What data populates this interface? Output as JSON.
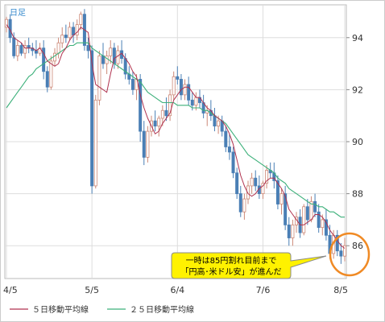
{
  "chart_data": {
    "type": "candlestick",
    "period_label": "日足",
    "x_tick_labels": [
      "4/5",
      "5/5",
      "6/4",
      "7/6",
      "8/5"
    ],
    "y_ticks": [
      86,
      88,
      90,
      92,
      94
    ],
    "ylim": [
      84.8,
      95.2
    ],
    "grid": true,
    "colors": {
      "up": "#cc8877",
      "down": "#4a7fb5",
      "ma5": "#b0324f",
      "ma25": "#3cb07a"
    },
    "series": [
      {
        "name": "５日移動平均線",
        "color": "#b0324f"
      },
      {
        "name": "２５日移動平均線",
        "color": "#3cb07a"
      }
    ],
    "candles_ohlc": [
      [
        94.4,
        94.8,
        94.2,
        94.7
      ],
      [
        94.7,
        94.9,
        93.8,
        94.0
      ],
      [
        94.0,
        94.2,
        93.2,
        93.3
      ],
      [
        93.3,
        93.9,
        93.1,
        93.7
      ],
      [
        93.7,
        93.8,
        93.3,
        93.4
      ],
      [
        93.4,
        93.9,
        93.2,
        93.7
      ],
      [
        93.7,
        94.0,
        93.4,
        93.6
      ],
      [
        93.6,
        93.8,
        93.3,
        93.5
      ],
      [
        93.5,
        93.9,
        93.2,
        93.4
      ],
      [
        93.4,
        93.8,
        93.3,
        93.6
      ],
      [
        93.6,
        93.9,
        92.4,
        92.7
      ],
      [
        92.7,
        92.9,
        91.9,
        92.1
      ],
      [
        92.1,
        93.3,
        92.0,
        93.1
      ],
      [
        93.1,
        93.6,
        92.9,
        93.4
      ],
      [
        93.4,
        94.0,
        93.2,
        93.8
      ],
      [
        93.8,
        94.4,
        93.6,
        94.1
      ],
      [
        94.1,
        94.5,
        93.8,
        94.0
      ],
      [
        94.0,
        94.6,
        93.9,
        94.4
      ],
      [
        94.4,
        94.6,
        93.8,
        94.1
      ],
      [
        94.1,
        94.7,
        93.9,
        94.5
      ],
      [
        94.5,
        95.0,
        94.3,
        94.9
      ],
      [
        94.9,
        95.1,
        93.5,
        93.7
      ],
      [
        93.7,
        94.0,
        93.2,
        93.5
      ],
      [
        93.5,
        93.7,
        88.0,
        88.3
      ],
      [
        88.3,
        91.8,
        88.2,
        91.6
      ],
      [
        91.6,
        93.5,
        91.4,
        93.3
      ],
      [
        93.3,
        93.8,
        92.8,
        93.0
      ],
      [
        93.0,
        93.5,
        92.6,
        93.3
      ],
      [
        93.3,
        93.9,
        93.0,
        93.6
      ],
      [
        93.6,
        93.8,
        92.8,
        93.0
      ],
      [
        93.0,
        93.7,
        92.8,
        93.5
      ],
      [
        93.5,
        93.9,
        93.0,
        93.2
      ],
      [
        93.2,
        93.4,
        92.4,
        92.6
      ],
      [
        92.6,
        92.9,
        92.2,
        92.4
      ],
      [
        92.4,
        92.7,
        91.8,
        92.0
      ],
      [
        92.0,
        92.6,
        91.6,
        92.4
      ],
      [
        92.4,
        92.6,
        90.0,
        90.4
      ],
      [
        90.4,
        90.8,
        89.1,
        89.4
      ],
      [
        89.4,
        90.6,
        89.2,
        90.4
      ],
      [
        90.4,
        91.0,
        90.2,
        90.8
      ],
      [
        90.8,
        91.2,
        90.4,
        90.6
      ],
      [
        90.6,
        91.0,
        90.2,
        90.9
      ],
      [
        90.9,
        91.4,
        90.6,
        91.2
      ],
      [
        91.2,
        91.7,
        90.8,
        91.0
      ],
      [
        91.0,
        92.0,
        90.8,
        91.8
      ],
      [
        91.8,
        92.7,
        91.6,
        92.5
      ],
      [
        92.5,
        92.9,
        92.2,
        92.4
      ],
      [
        92.4,
        92.6,
        91.6,
        91.8
      ],
      [
        91.8,
        92.4,
        91.6,
        92.2
      ],
      [
        92.2,
        92.5,
        91.4,
        91.6
      ],
      [
        91.6,
        91.9,
        91.2,
        91.4
      ],
      [
        91.4,
        91.9,
        91.2,
        91.7
      ],
      [
        91.7,
        92.0,
        91.3,
        91.5
      ],
      [
        91.5,
        91.8,
        90.9,
        91.1
      ],
      [
        91.1,
        91.4,
        90.6,
        91.2
      ],
      [
        91.2,
        91.6,
        90.8,
        91.0
      ],
      [
        91.0,
        91.3,
        90.4,
        90.6
      ],
      [
        90.6,
        91.0,
        90.3,
        90.8
      ],
      [
        90.8,
        91.0,
        90.2,
        90.4
      ],
      [
        90.4,
        90.6,
        89.6,
        89.8
      ],
      [
        89.8,
        90.3,
        89.3,
        89.6
      ],
      [
        89.6,
        89.8,
        88.6,
        88.8
      ],
      [
        88.8,
        89.0,
        87.8,
        88.0
      ],
      [
        88.0,
        88.3,
        87.1,
        87.3
      ],
      [
        87.3,
        88.0,
        87.0,
        87.8
      ],
      [
        87.8,
        88.5,
        87.6,
        88.3
      ],
      [
        88.3,
        88.8,
        88.0,
        88.6
      ],
      [
        88.6,
        88.9,
        88.1,
        88.3
      ],
      [
        88.3,
        88.7,
        87.8,
        88.0
      ],
      [
        88.0,
        88.5,
        87.8,
        88.4
      ],
      [
        88.4,
        89.1,
        88.2,
        88.9
      ],
      [
        88.9,
        89.2,
        88.6,
        88.8
      ],
      [
        88.8,
        89.2,
        88.2,
        88.5
      ],
      [
        88.5,
        88.7,
        87.4,
        87.6
      ],
      [
        87.6,
        88.2,
        87.2,
        88.0
      ],
      [
        88.0,
        88.3,
        86.6,
        86.8
      ],
      [
        86.8,
        87.1,
        86.0,
        86.3
      ],
      [
        86.3,
        87.0,
        86.0,
        86.8
      ],
      [
        86.8,
        87.3,
        86.5,
        87.1
      ],
      [
        87.1,
        87.4,
        86.3,
        86.5
      ],
      [
        86.5,
        87.6,
        86.4,
        87.5
      ],
      [
        87.5,
        87.8,
        86.8,
        87.0
      ],
      [
        87.0,
        87.9,
        86.9,
        87.7
      ],
      [
        87.7,
        88.0,
        87.1,
        87.3
      ],
      [
        87.3,
        87.6,
        86.5,
        86.7
      ],
      [
        86.7,
        87.2,
        86.4,
        87.0
      ],
      [
        87.0,
        87.4,
        86.2,
        86.4
      ],
      [
        86.4,
        86.8,
        85.5,
        85.7
      ],
      [
        85.7,
        86.6,
        85.5,
        86.4
      ],
      [
        86.4,
        86.6,
        85.6,
        85.8
      ],
      [
        85.8,
        86.1,
        85.3,
        85.6
      ],
      [
        85.6,
        86.3,
        85.4,
        86.0
      ]
    ],
    "ma5": [
      94.5,
      94.3,
      94.0,
      93.9,
      93.8,
      93.6,
      93.6,
      93.6,
      93.5,
      93.6,
      93.4,
      93.1,
      93.0,
      92.9,
      93.0,
      93.4,
      93.6,
      93.9,
      94.1,
      94.2,
      94.4,
      94.3,
      94.2,
      93.0,
      92.2,
      92.1,
      92.0,
      91.9,
      92.6,
      93.2,
      93.3,
      93.4,
      93.2,
      93.0,
      92.7,
      92.5,
      91.8,
      91.3,
      90.9,
      90.6,
      90.3,
      90.4,
      90.7,
      90.9,
      91.1,
      91.6,
      91.8,
      92.0,
      92.1,
      92.1,
      91.9,
      91.7,
      91.7,
      91.5,
      91.3,
      91.2,
      91.0,
      90.9,
      90.8,
      90.6,
      90.3,
      89.9,
      89.3,
      88.7,
      88.3,
      88.0,
      87.9,
      88.0,
      88.2,
      88.3,
      88.5,
      88.6,
      88.6,
      88.4,
      88.2,
      87.9,
      87.4,
      87.2,
      87.0,
      86.8,
      86.8,
      86.9,
      87.0,
      87.2,
      87.2,
      87.1,
      86.9,
      86.6,
      86.4,
      86.2,
      86.0,
      85.9
    ],
    "ma25": [
      91.3,
      91.5,
      91.7,
      91.9,
      92.1,
      92.3,
      92.5,
      92.6,
      92.8,
      92.9,
      93.0,
      93.1,
      93.2,
      93.3,
      93.4,
      93.5,
      93.6,
      93.7,
      93.7,
      93.8,
      93.8,
      93.8,
      93.8,
      93.6,
      93.5,
      93.4,
      93.3,
      93.2,
      93.1,
      93.0,
      92.9,
      92.8,
      92.7,
      92.6,
      92.5,
      92.4,
      92.3,
      92.1,
      91.9,
      91.8,
      91.7,
      91.6,
      91.5,
      91.5,
      91.5,
      91.5,
      91.4,
      91.4,
      91.4,
      91.4,
      91.3,
      91.3,
      91.3,
      91.2,
      91.2,
      91.1,
      91.0,
      90.9,
      90.8,
      90.7,
      90.5,
      90.3,
      90.1,
      89.9,
      89.7,
      89.5,
      89.4,
      89.3,
      89.2,
      89.1,
      89.0,
      88.9,
      88.8,
      88.6,
      88.5,
      88.4,
      88.2,
      88.1,
      88.0,
      87.9,
      87.8,
      87.7,
      87.6,
      87.6,
      87.5,
      87.5,
      87.4,
      87.3,
      87.3,
      87.2,
      87.1,
      87.1
    ],
    "x_tick_indices": [
      0,
      23,
      46,
      69,
      91
    ],
    "annotation": {
      "lines": [
        "一時は85円割れ目前まで",
        "「円高･米ドル安」が進んだ"
      ]
    }
  }
}
